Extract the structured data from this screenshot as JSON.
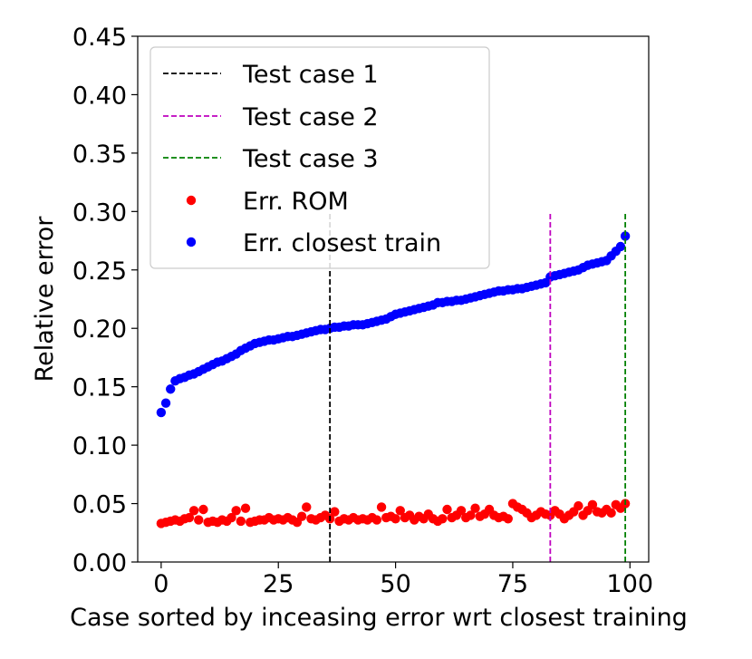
{
  "chart_data": {
    "type": "scatter",
    "xlabel": "Case sorted by inceasing error wrt closest training",
    "ylabel": "Relative error",
    "xlim": [
      -5,
      104
    ],
    "ylim": [
      0,
      0.45
    ],
    "x_ticks": [
      {
        "value": 0,
        "label": "0"
      },
      {
        "value": 25,
        "label": "25"
      },
      {
        "value": 50,
        "label": "50"
      },
      {
        "value": 75,
        "label": "75"
      },
      {
        "value": 100,
        "label": "100"
      }
    ],
    "y_ticks": [
      {
        "value": 0.0,
        "label": "0.00"
      },
      {
        "value": 0.05,
        "label": "0.05"
      },
      {
        "value": 0.1,
        "label": "0.10"
      },
      {
        "value": 0.15,
        "label": "0.15"
      },
      {
        "value": 0.2,
        "label": "0.20"
      },
      {
        "value": 0.25,
        "label": "0.25"
      },
      {
        "value": 0.3,
        "label": "0.30"
      },
      {
        "value": 0.35,
        "label": "0.35"
      },
      {
        "value": 0.4,
        "label": "0.40"
      },
      {
        "value": 0.45,
        "label": "0.45"
      }
    ],
    "grid": false,
    "legend_position": "top-left",
    "vlines": [
      {
        "name": "Test case 1",
        "x": 36,
        "ymin": 0,
        "ymax": 0.3,
        "color": "#000000"
      },
      {
        "name": "Test case 2",
        "x": 83,
        "ymin": 0,
        "ymax": 0.3,
        "color": "#bf00bf"
      },
      {
        "name": "Test case 3",
        "x": 99,
        "ymin": 0,
        "ymax": 0.3,
        "color": "#008000"
      }
    ],
    "series": [
      {
        "name": "Err. ROM",
        "color": "#ff0000",
        "y": [
          0.033,
          0.034,
          0.035,
          0.036,
          0.035,
          0.037,
          0.038,
          0.044,
          0.036,
          0.045,
          0.034,
          0.035,
          0.034,
          0.036,
          0.035,
          0.038,
          0.044,
          0.035,
          0.046,
          0.034,
          0.035,
          0.036,
          0.036,
          0.038,
          0.036,
          0.037,
          0.036,
          0.038,
          0.036,
          0.034,
          0.039,
          0.047,
          0.037,
          0.036,
          0.038,
          0.04,
          0.037,
          0.043,
          0.035,
          0.037,
          0.036,
          0.038,
          0.036,
          0.037,
          0.036,
          0.038,
          0.036,
          0.047,
          0.038,
          0.039,
          0.037,
          0.044,
          0.038,
          0.04,
          0.036,
          0.039,
          0.037,
          0.041,
          0.037,
          0.035,
          0.037,
          0.045,
          0.038,
          0.04,
          0.044,
          0.038,
          0.04,
          0.046,
          0.039,
          0.041,
          0.045,
          0.04,
          0.038,
          0.039,
          0.037,
          0.05,
          0.047,
          0.045,
          0.042,
          0.038,
          0.04,
          0.043,
          0.041,
          0.04,
          0.044,
          0.041,
          0.037,
          0.04,
          0.043,
          0.048,
          0.04,
          0.044,
          0.049,
          0.043,
          0.042,
          0.045,
          0.042,
          0.049,
          0.046,
          0.05
        ]
      },
      {
        "name": "Err. closest train",
        "color": "#0000ff",
        "y": [
          0.128,
          0.136,
          0.148,
          0.155,
          0.157,
          0.158,
          0.16,
          0.161,
          0.163,
          0.165,
          0.167,
          0.169,
          0.171,
          0.172,
          0.174,
          0.176,
          0.178,
          0.181,
          0.183,
          0.185,
          0.187,
          0.188,
          0.189,
          0.19,
          0.19,
          0.191,
          0.192,
          0.193,
          0.193,
          0.194,
          0.195,
          0.196,
          0.197,
          0.198,
          0.199,
          0.199,
          0.2,
          0.201,
          0.201,
          0.202,
          0.202,
          0.203,
          0.203,
          0.203,
          0.204,
          0.205,
          0.206,
          0.207,
          0.208,
          0.21,
          0.212,
          0.213,
          0.214,
          0.215,
          0.216,
          0.217,
          0.218,
          0.219,
          0.22,
          0.222,
          0.222,
          0.223,
          0.223,
          0.224,
          0.224,
          0.225,
          0.226,
          0.227,
          0.228,
          0.229,
          0.23,
          0.231,
          0.232,
          0.232,
          0.233,
          0.233,
          0.234,
          0.234,
          0.235,
          0.236,
          0.237,
          0.238,
          0.239,
          0.244,
          0.245,
          0.246,
          0.247,
          0.248,
          0.249,
          0.25,
          0.252,
          0.254,
          0.255,
          0.256,
          0.257,
          0.258,
          0.262,
          0.266,
          0.27,
          0.279
        ]
      }
    ]
  }
}
